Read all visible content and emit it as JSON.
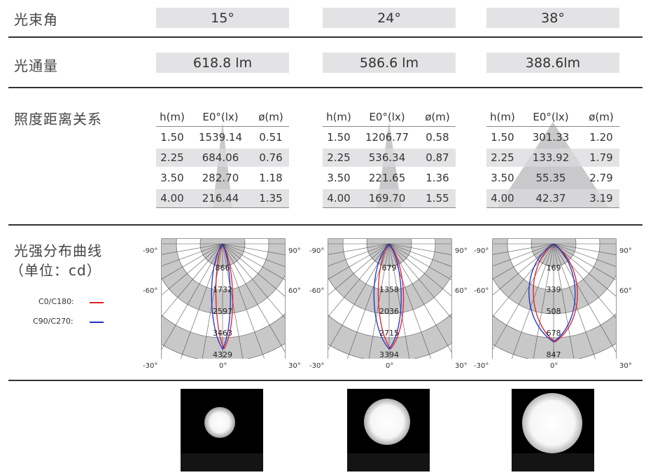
{
  "labels": {
    "beam_angle": "光束角",
    "luminous_flux": "光通量",
    "illuminance": "照度距离关系",
    "intensity_line1": "光强分布曲线",
    "intensity_line2": "（单位：cd）"
  },
  "beam_angles": [
    "15°",
    "24°",
    "38°"
  ],
  "fluxes": [
    "618.8 lm",
    "586.6 lm",
    "388.6lm"
  ],
  "table_headers": [
    "h(m)",
    "E0°(lx)",
    "ø(m)"
  ],
  "tables": [
    [
      [
        "1.50",
        "1539.14",
        "0.51"
      ],
      [
        "2.25",
        "684.06",
        "0.76"
      ],
      [
        "3.50",
        "282.70",
        "1.18"
      ],
      [
        "4.00",
        "216.44",
        "1.35"
      ]
    ],
    [
      [
        "1.50",
        "1206.77",
        "0.58"
      ],
      [
        "2.25",
        "536.34",
        "0.87"
      ],
      [
        "3.50",
        "221.65",
        "1.36"
      ],
      [
        "4.00",
        "169.70",
        "1.55"
      ]
    ],
    [
      [
        "1.50",
        "301.33",
        "1.20"
      ],
      [
        "2.25",
        "133.92",
        "1.79"
      ],
      [
        "3.50",
        "55.35",
        "2.79"
      ],
      [
        "4.00",
        "42.37",
        "3.19"
      ]
    ]
  ],
  "legend": [
    {
      "label": "C0/C180:",
      "color": "#e02020"
    },
    {
      "label": "C90/C270:",
      "color": "#2030d0"
    }
  ],
  "polar_angle_labels": {
    "left": [
      "-90°",
      "-60°",
      "-30°"
    ],
    "right": [
      "90°",
      "60°",
      "30°"
    ],
    "bottom": "0°"
  },
  "polar_rings": [
    [
      "866",
      "1732",
      "2597",
      "3463",
      "4329"
    ],
    [
      "679",
      "1358",
      "2036",
      "2715",
      "3394"
    ],
    [
      "169",
      "339",
      "508",
      "678",
      "847"
    ]
  ],
  "chart_data": [
    {
      "type": "polar",
      "ring_labels": [
        "866",
        "1732",
        "2597",
        "3463",
        "4329"
      ],
      "beam_angle": "15°",
      "series": [
        {
          "name": "C0/C180",
          "color": "#e02020"
        },
        {
          "name": "C90/C270",
          "color": "#2030d0"
        }
      ]
    },
    {
      "type": "polar",
      "ring_labels": [
        "679",
        "1358",
        "2036",
        "2715",
        "3394"
      ],
      "beam_angle": "24°",
      "series": [
        {
          "name": "C0/C180",
          "color": "#e02020"
        },
        {
          "name": "C90/C270",
          "color": "#2030d0"
        }
      ]
    },
    {
      "type": "polar",
      "ring_labels": [
        "169",
        "339",
        "508",
        "678",
        "847"
      ],
      "beam_angle": "38°",
      "series": [
        {
          "name": "C0/C180",
          "color": "#e02020"
        },
        {
          "name": "C90/C270",
          "color": "#2030d0"
        }
      ]
    }
  ]
}
